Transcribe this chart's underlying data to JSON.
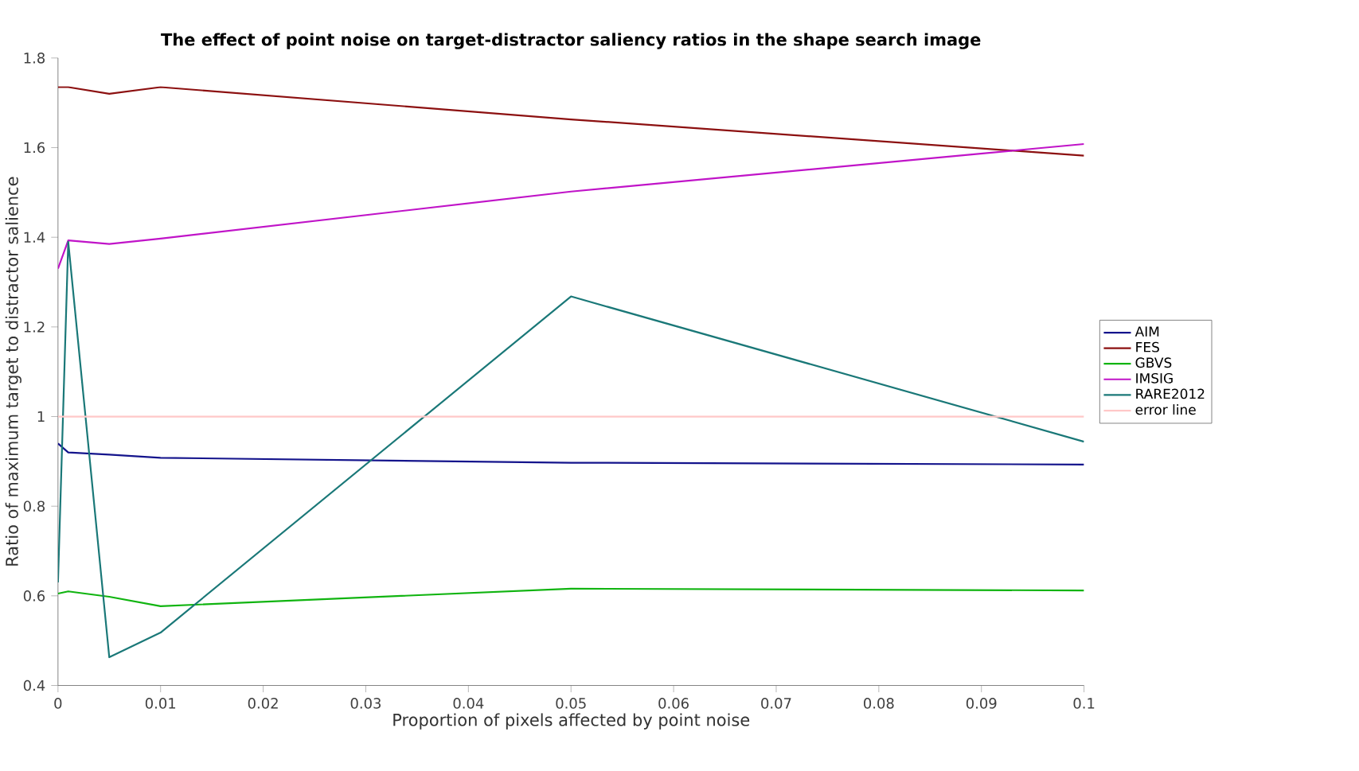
{
  "chart_data": {
    "type": "line",
    "title": "The effect of point noise on target-distractor saliency ratios in the shape search image",
    "xlabel": "Proportion of pixels affected by point noise",
    "ylabel": "Ratio of maximum target to distractor salience",
    "x": [
      0,
      0.001,
      0.005,
      0.01,
      0.05,
      0.1
    ],
    "series": [
      {
        "name": "AIM",
        "color": "#14148c",
        "values": [
          0.94,
          0.92,
          0.915,
          0.908,
          0.897,
          0.893
        ]
      },
      {
        "name": "FES",
        "color": "#8c1010",
        "values": [
          1.735,
          1.735,
          1.72,
          1.735,
          1.663,
          1.582
        ]
      },
      {
        "name": "GBVS",
        "color": "#10b410",
        "values": [
          0.605,
          0.61,
          0.598,
          0.577,
          0.616,
          0.612
        ]
      },
      {
        "name": "IMSIG",
        "color": "#c014c8",
        "values": [
          1.33,
          1.393,
          1.385,
          1.397,
          1.502,
          1.608
        ]
      },
      {
        "name": "RARE2012",
        "color": "#1a7878",
        "values": [
          0.63,
          1.39,
          0.463,
          0.518,
          1.268,
          0.944
        ]
      },
      {
        "name": "error line",
        "color": "#ffc8c8",
        "x": [
          0,
          0.1
        ],
        "values": [
          1,
          1
        ]
      }
    ],
    "xlim": [
      0,
      0.1
    ],
    "ylim": [
      0.4,
      1.8
    ],
    "xticks": [
      0,
      0.01,
      0.02,
      0.03,
      0.04,
      0.05,
      0.06,
      0.07,
      0.08,
      0.09,
      0.1
    ],
    "yticks": [
      0.4,
      0.6,
      0.8,
      1,
      1.2,
      1.4,
      1.6,
      1.8
    ],
    "legend": "right",
    "marker": "none",
    "line_style": "solid"
  }
}
